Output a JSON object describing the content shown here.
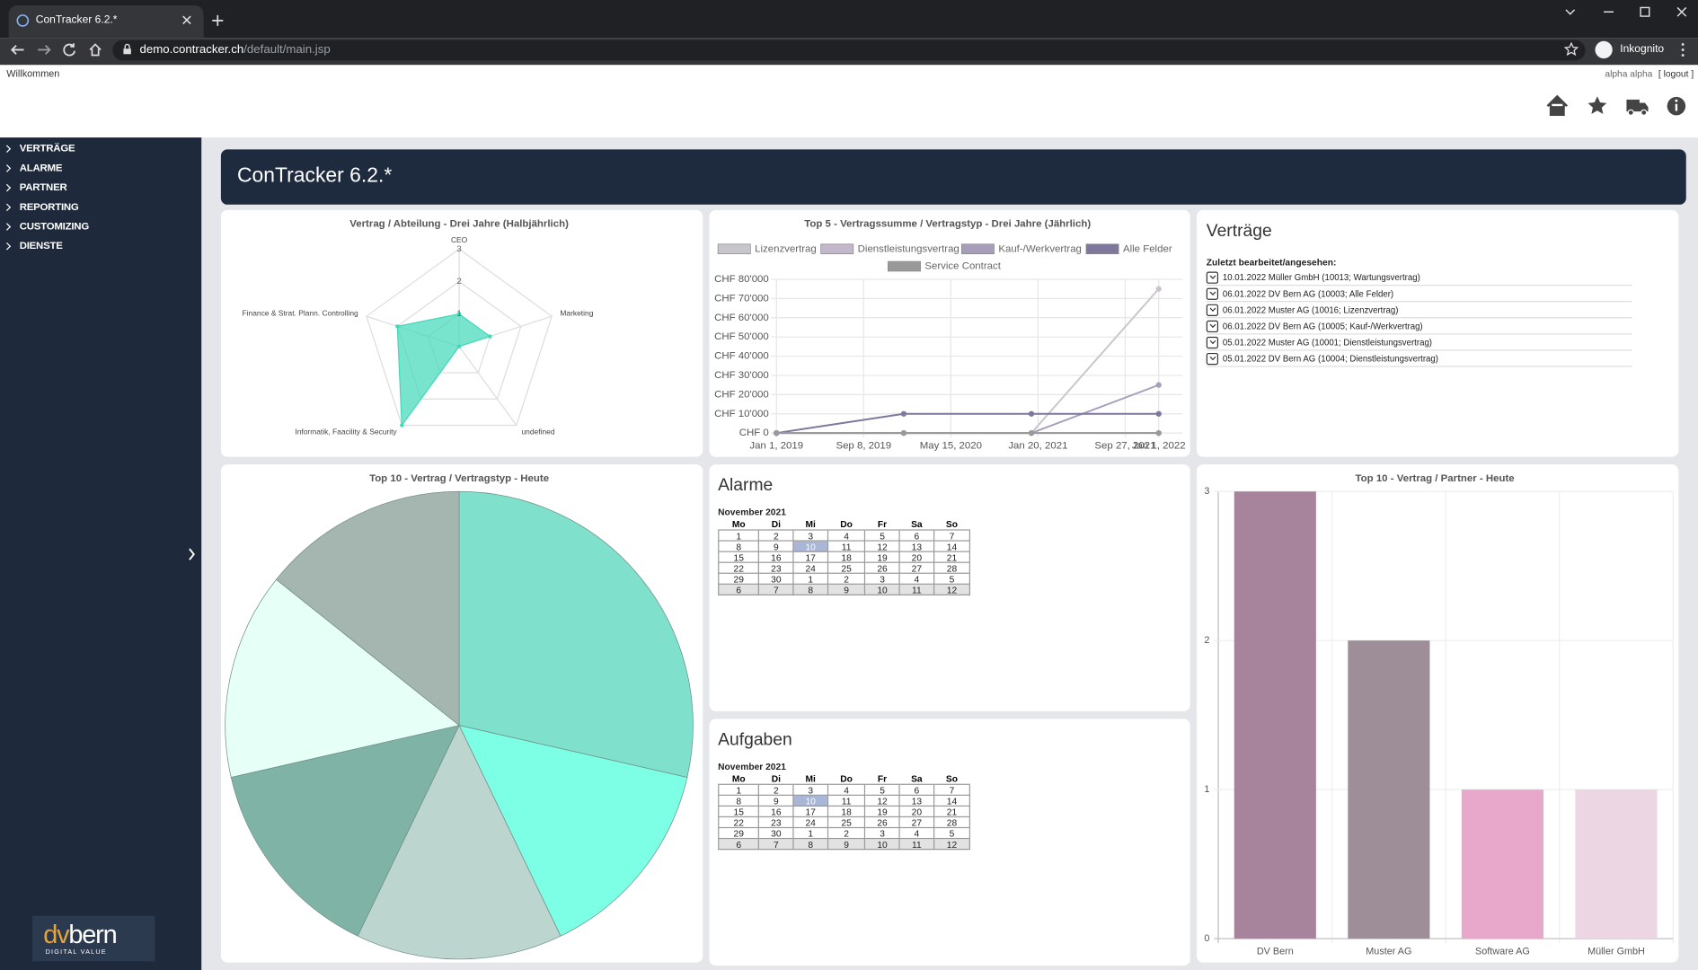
{
  "browser": {
    "tab_title": "ConTracker 6.2.*",
    "url_host": "demo.contracker.ch",
    "url_path": "/default/main.jsp",
    "profile": "Inkognito"
  },
  "header": {
    "welcome": "Willkommen",
    "user": "alpha alpha",
    "logout": "[ logout ]"
  },
  "menu": [
    "VERTRÄGE",
    "ALARME",
    "PARTNER",
    "REPORTING",
    "CUSTOMIZING",
    "DIENSTE"
  ],
  "banner": "ConTracker 6.2.*",
  "logo": {
    "text": [
      "dv",
      "bern"
    ],
    "tagline": "DIGITAL VALUE"
  },
  "chart_data": [
    {
      "type": "radar",
      "title": "Vertrag / Abteilung - Drei Jahre (Halbjährlich)",
      "categories": [
        "CEO",
        "Marketing",
        "undefined",
        "Informatik, Faacility & Security",
        "Finance & Strat. Plann. Controlling"
      ],
      "series": [
        {
          "color": "#40d9b8",
          "values": [
            1,
            1,
            0,
            3,
            2
          ]
        }
      ],
      "ylim": [
        0,
        3
      ],
      "yticks": [
        1,
        2,
        3
      ]
    },
    {
      "type": "line",
      "title": "Top 5 - Vertragssumme / Vertragstyp - Drei Jahre (Jährlich)",
      "x": [
        "2019-01-01",
        "2020-01-01",
        "2021-01-01",
        "2022-01-01"
      ],
      "series": [
        {
          "name": "Lizenzvertrag",
          "color": "#c9c5cd",
          "values": [
            0,
            0,
            0,
            75000
          ]
        },
        {
          "name": "Dienstleistungsvertrag",
          "color": "#c3b7cb",
          "values": [
            0,
            0,
            0,
            0
          ]
        },
        {
          "name": "Kauf-/Werkvertrag",
          "color": "#a69ebb",
          "values": [
            0,
            0,
            0,
            25000
          ]
        },
        {
          "name": "Alle Felder",
          "color": "#7f779c",
          "values": [
            0,
            10000,
            10000,
            10000
          ]
        },
        {
          "name": "Service Contract",
          "color": "#999999",
          "values": [
            0,
            0,
            0,
            0
          ]
        }
      ],
      "xlim": [
        "2019-01-01",
        "2022-01-01"
      ],
      "xticks": [
        {
          "value": "2019-01-01",
          "label": "Jan 1, 2019"
        },
        {
          "value": "2019-09-08",
          "label": "Sep 8, 2019"
        },
        {
          "value": "2020-05-15",
          "label": "May 15, 2020"
        },
        {
          "value": "2021-01-20",
          "label": "Jan 20, 2021"
        },
        {
          "value": "2021-09-27",
          "label": "Sep 27, 2021"
        },
        {
          "value": "2022-01-01",
          "label": "Jan 1, 2022"
        }
      ],
      "ylim": [
        0,
        80000
      ],
      "yticks": [
        {
          "value": 0,
          "label": "CHF 0"
        },
        {
          "value": 10000,
          "label": "CHF 10'000"
        },
        {
          "value": 20000,
          "label": "CHF 20'000"
        },
        {
          "value": 30000,
          "label": "CHF 30'000"
        },
        {
          "value": 40000,
          "label": "CHF 40'000"
        },
        {
          "value": 50000,
          "label": "CHF 50'000"
        },
        {
          "value": 60000,
          "label": "CHF 60'000"
        },
        {
          "value": 70000,
          "label": "CHF 70'000"
        },
        {
          "value": 80000,
          "label": "CHF 80'000"
        }
      ],
      "grid": true,
      "legend": "top"
    },
    {
      "type": "pie",
      "title": "Top 10 - Vertrag / Vertragstyp - Heute",
      "values": [
        2,
        1,
        1,
        1,
        1,
        1
      ],
      "colors": [
        "#7fe0cc",
        "#7dffe6",
        "#bcd6cf",
        "#7fb3a5",
        "#e6fff7",
        "#a5b5af"
      ]
    },
    {
      "type": "bar",
      "title": "Top 10 - Vertrag / Partner - Heute",
      "categories": [
        "DV Bern",
        "Muster AG",
        "Software AG",
        "Müller GmbH"
      ],
      "values": [
        3,
        2,
        1,
        1
      ],
      "colors": [
        "#a8849c",
        "#9e8e98",
        "#e8a8cc",
        "#ecd6e3"
      ],
      "ylim": [
        0,
        3
      ],
      "yticks": [
        0,
        1,
        2,
        3
      ],
      "grid": true
    }
  ],
  "contracts": {
    "title": "Verträge",
    "subtitle": "Zuletzt bearbeitet/angesehen:",
    "items": [
      "10.01.2022 Müller GmbH (10013; Wartungsvertrag)",
      "06.01.2022 DV Bern AG (10003; Alle Felder)",
      "06.01.2022 Muster AG (10016; Lizenzvertrag)",
      "06.01.2022 DV Bern AG (10005; Kauf-/Werkvertrag)",
      "05.01.2022 Muster AG (10001; Dienstleistungsvertrag)",
      "05.01.2022 DV Bern AG (10004; Dienstleistungsvertrag)"
    ]
  },
  "calendars": [
    {
      "title": "Alarme",
      "month": "November 2021",
      "weekdays": [
        "Mo",
        "Di",
        "Mi",
        "Do",
        "Fr",
        "Sa",
        "So"
      ],
      "weeks": [
        [
          1,
          2,
          3,
          4,
          5,
          6,
          7
        ],
        [
          8,
          9,
          10,
          11,
          12,
          13,
          14
        ],
        [
          15,
          16,
          17,
          18,
          19,
          20,
          21
        ],
        [
          22,
          23,
          24,
          25,
          26,
          27,
          28
        ],
        [
          29,
          30,
          1,
          2,
          3,
          4,
          5
        ],
        [
          6,
          7,
          8,
          9,
          10,
          11,
          12
        ]
      ],
      "today": [
        1,
        2
      ]
    },
    {
      "title": "Aufgaben",
      "month": "November 2021",
      "weekdays": [
        "Mo",
        "Di",
        "Mi",
        "Do",
        "Fr",
        "Sa",
        "So"
      ],
      "weeks": [
        [
          1,
          2,
          3,
          4,
          5,
          6,
          7
        ],
        [
          8,
          9,
          10,
          11,
          12,
          13,
          14
        ],
        [
          15,
          16,
          17,
          18,
          19,
          20,
          21
        ],
        [
          22,
          23,
          24,
          25,
          26,
          27,
          28
        ],
        [
          29,
          30,
          1,
          2,
          3,
          4,
          5
        ],
        [
          6,
          7,
          8,
          9,
          10,
          11,
          12
        ]
      ],
      "today": [
        1,
        2
      ]
    }
  ]
}
